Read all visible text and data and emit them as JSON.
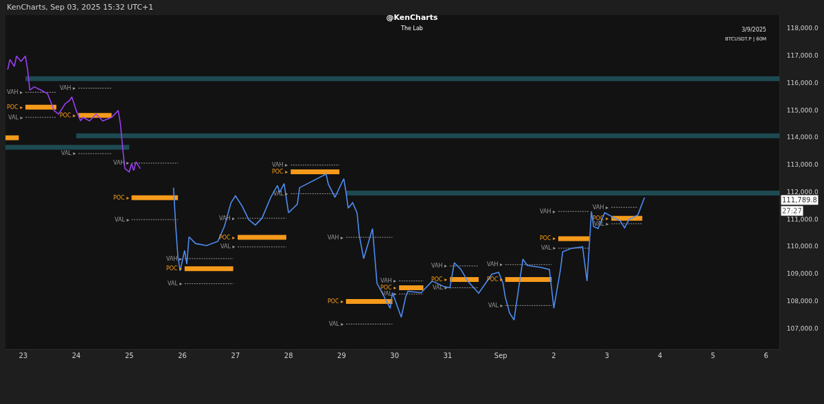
{
  "chart_data": {
    "type": "line",
    "title": "@KenCharts",
    "subtitle": "The Lab",
    "x": [
      "2025-08-22T17:00",
      "2025-08-22T18:00",
      "2025-08-22T20:00",
      "2025-08-22T21:00",
      "2025-08-22T23:00",
      "2025-08-23T01:00",
      "2025-08-23T02:00",
      "2025-08-23T03:00",
      "2025-08-23T05:00",
      "2025-08-23T08:00",
      "2025-08-23T11:00",
      "2025-08-23T14:00",
      "2025-08-23T16:00",
      "2025-08-23T19:00",
      "2025-08-23T21:00",
      "2025-08-23T22:00",
      "2025-08-24T00:00",
      "2025-08-24T02:00",
      "2025-08-24T03:00",
      "2025-08-24T06:00",
      "2025-08-24T09:00",
      "2025-08-24T12:00",
      "2025-08-24T16:00",
      "2025-08-24T19:00",
      "2025-08-24T20:00",
      "2025-08-24T21:00",
      "2025-08-24T22:00",
      "2025-08-25T00:00",
      "2025-08-25T01:00",
      "2025-08-25T02:00",
      "2025-08-25T03:00",
      "2025-08-25T05:00"
    ],
    "series": [
      {
        "color": "#9b3ff5",
        "values": [
          116480,
          116850,
          116600,
          116980,
          116780,
          116980,
          116480,
          115730,
          115850,
          115730,
          115600,
          114980,
          114850,
          115230,
          115350,
          115480,
          114980,
          114600,
          114730,
          114600,
          114850,
          114600,
          114730,
          114980,
          114480,
          113600,
          112850,
          112730,
          113030,
          112780,
          113100,
          112850
        ]
      },
      {
        "color": "#4f8df2",
        "x": [
          "2025-08-25T20:00",
          "2025-08-25T21:00",
          "2025-08-25T22:00",
          "2025-08-25T23:00",
          "2025-08-26T01:00",
          "2025-08-26T02:00",
          "2025-08-26T03:00",
          "2025-08-26T06:00",
          "2025-08-26T11:00",
          "2025-08-26T16:00",
          "2025-08-26T19:00",
          "2025-08-26T22:00",
          "2025-08-27T00:00",
          "2025-08-27T03:00",
          "2025-08-27T06:00",
          "2025-08-27T09:00",
          "2025-08-27T12:00",
          "2025-08-27T16:00",
          "2025-08-27T19:00",
          "2025-08-27T20:00",
          "2025-08-27T22:00",
          "2025-08-28T00:00",
          "2025-08-28T04:00",
          "2025-08-28T05:00",
          "2025-08-28T17:00",
          "2025-08-28T18:00",
          "2025-08-28T21:00",
          "2025-08-29T01:00",
          "2025-08-29T02:00",
          "2025-08-29T03:00",
          "2025-08-29T05:00",
          "2025-08-29T07:00",
          "2025-08-29T08:00",
          "2025-08-29T10:00",
          "2025-08-29T14:00",
          "2025-08-29T16:00",
          "2025-08-29T22:00",
          "2025-08-29T23:00",
          "2025-08-30T03:00",
          "2025-08-30T05:00",
          "2025-08-30T06:00",
          "2025-08-30T12:00",
          "2025-08-30T17:00",
          "2025-08-30T22:00",
          "2025-08-31T01:00",
          "2025-08-31T03:00",
          "2025-08-31T06:00",
          "2025-08-31T09:00",
          "2025-08-31T14:00",
          "2025-08-31T20:00",
          "2025-08-31T23:00",
          "2025-09-01T01:00",
          "2025-09-01T02:00",
          "2025-09-01T04:00",
          "2025-09-01T06:00",
          "2025-09-01T10:00",
          "2025-09-01T12:00",
          "2025-09-01T18:00",
          "2025-09-01T22:00",
          "2025-09-02T00:00",
          "2025-09-02T03:00",
          "2025-09-02T04:00",
          "2025-09-02T08:00",
          "2025-09-02T13:00",
          "2025-09-02T15:00",
          "2025-09-02T16:00",
          "2025-09-02T17:00",
          "2025-09-02T18:00",
          "2025-09-02T20:00",
          "2025-09-02T23:00",
          "2025-09-03T02:00",
          "2025-09-03T06:00",
          "2025-09-03T08:00",
          "2025-09-03T10:00",
          "2025-09-03T14:00",
          "2025-09-03T17:00"
        ],
        "values": [
          112150,
          110730,
          109600,
          109100,
          109850,
          109350,
          110350,
          110100,
          110030,
          110180,
          110730,
          111600,
          111850,
          111480,
          110980,
          110780,
          111030,
          111800,
          112230,
          111980,
          112300,
          111230,
          111550,
          112150,
          112650,
          112280,
          111800,
          112480,
          111980,
          111400,
          111600,
          111230,
          110400,
          109550,
          110650,
          108650,
          107730,
          108300,
          107400,
          108150,
          108350,
          108300,
          108730,
          108530,
          108480,
          109400,
          109150,
          108730,
          108280,
          108980,
          109050,
          108650,
          108150,
          107550,
          107300,
          109530,
          109300,
          109230,
          109150,
          107730,
          109150,
          109800,
          109930,
          109980,
          108730,
          109980,
          111280,
          110730,
          110650,
          111230,
          111100,
          110930,
          110680,
          110980,
          111150,
          111790
        ]
      },
      {
        "color": "#1e4a52",
        "x": [
          "2025-08-23T01:00",
          "2025-09-06T06:00"
        ],
        "values": [
          116150,
          116150
        ]
      },
      {
        "color": "#1e4a52",
        "x": [
          "2025-08-24T00:00",
          "2025-09-06T06:00"
        ],
        "values": [
          114050,
          114050
        ]
      },
      {
        "color": "#1e4a52",
        "x": [
          "2025-08-22T16:00",
          "2025-08-25T00:00"
        ],
        "values": [
          113630,
          113630
        ]
      },
      {
        "color": "#1e4a52",
        "x": [
          "2025-08-29T02:00",
          "2025-09-06T06:00"
        ],
        "values": [
          111950,
          111950
        ]
      },
      {
        "name": "VAH ▸",
        "color": "#9a9a9a",
        "line_style": "dotted",
        "x": [
          "2025-08-23T01:00",
          "2025-08-23T15:00"
        ],
        "values": [
          115650,
          115650
        ]
      },
      {
        "name": "POC ▸",
        "color": "#f59a1b",
        "x": [
          "2025-08-23T01:00",
          "2025-08-23T15:00"
        ],
        "values": [
          115100,
          115100
        ]
      },
      {
        "name": "VAL ▸",
        "color": "#9a9a9a",
        "line_style": "dotted",
        "x": [
          "2025-08-23T01:00",
          "2025-08-23T15:00"
        ],
        "values": [
          114730,
          114730
        ]
      },
      {
        "name": "VAH ▸",
        "color": "#9a9a9a",
        "line_style": "dotted",
        "x": [
          "2025-08-24T01:00",
          "2025-08-24T16:00"
        ],
        "values": [
          115800,
          115800
        ]
      },
      {
        "name": "POC ▸",
        "color": "#f59a1b",
        "x": [
          "2025-08-24T01:00",
          "2025-08-24T16:00"
        ],
        "values": [
          114800,
          114800
        ]
      },
      {
        "name": "VAL ▸",
        "color": "#9a9a9a",
        "line_style": "dotted",
        "x": [
          "2025-08-24T01:00",
          "2025-08-24T16:00"
        ],
        "values": [
          113400,
          113400
        ]
      },
      {
        "color": "#f59a1b",
        "x": [
          "2025-08-22T16:00",
          "2025-08-22T22:00"
        ],
        "values": [
          113980,
          113980
        ]
      },
      {
        "name": "VAH ▸",
        "color": "#9a9a9a",
        "line_style": "dotted",
        "x": [
          "2025-08-25T01:00",
          "2025-08-25T22:00"
        ],
        "values": [
          113050,
          113050
        ]
      },
      {
        "name": "POC ▸",
        "color": "#f59a1b",
        "x": [
          "2025-08-25T01:00",
          "2025-08-25T22:00"
        ],
        "values": [
          111780,
          111780
        ]
      },
      {
        "name": "VAL ▸",
        "color": "#9a9a9a",
        "line_style": "dotted",
        "x": [
          "2025-08-25T01:00",
          "2025-08-25T22:00"
        ],
        "values": [
          110980,
          110980
        ]
      },
      {
        "name": "VAH ▸",
        "color": "#9a9a9a",
        "line_style": "dotted",
        "x": [
          "2025-08-26T01:00",
          "2025-08-26T23:00"
        ],
        "values": [
          109550,
          109550
        ]
      },
      {
        "name": "POC ▸",
        "color": "#f59a1b",
        "x": [
          "2025-08-26T01:00",
          "2025-08-26T23:00"
        ],
        "values": [
          109180,
          109180
        ]
      },
      {
        "name": "VAL ▸",
        "color": "#9a9a9a",
        "line_style": "dotted",
        "x": [
          "2025-08-26T01:00",
          "2025-08-26T23:00"
        ],
        "values": [
          108630,
          108630
        ]
      },
      {
        "name": "VAH ▸",
        "color": "#9a9a9a",
        "line_style": "dotted",
        "x": [
          "2025-08-27T01:00",
          "2025-08-27T23:00"
        ],
        "values": [
          111030,
          111030
        ]
      },
      {
        "name": "POC ▸",
        "color": "#f59a1b",
        "x": [
          "2025-08-27T01:00",
          "2025-08-27T23:00"
        ],
        "values": [
          110330,
          110330
        ]
      },
      {
        "name": "VAL ▸",
        "color": "#9a9a9a",
        "line_style": "dotted",
        "x": [
          "2025-08-27T01:00",
          "2025-08-27T23:00"
        ],
        "values": [
          109980,
          109980
        ]
      },
      {
        "name": "VAH ▸",
        "color": "#9a9a9a",
        "line_style": "dotted",
        "x": [
          "2025-08-28T01:00",
          "2025-08-28T23:00"
        ],
        "values": [
          112980,
          112980
        ]
      },
      {
        "name": "POC ▸",
        "color": "#f59a1b",
        "x": [
          "2025-08-28T01:00",
          "2025-08-28T23:00"
        ],
        "values": [
          112730,
          112730
        ]
      },
      {
        "name": "VAL ▸",
        "color": "#9a9a9a",
        "line_style": "dotted",
        "x": [
          "2025-08-28T01:00",
          "2025-08-28T23:00"
        ],
        "values": [
          111930,
          111930
        ]
      },
      {
        "name": "VAH ▸",
        "color": "#9a9a9a",
        "line_style": "dotted",
        "x": [
          "2025-08-29T02:00",
          "2025-08-29T23:00"
        ],
        "values": [
          110330,
          110330
        ]
      },
      {
        "name": "POC ▸",
        "color": "#f59a1b",
        "x": [
          "2025-08-29T02:00",
          "2025-08-29T23:00"
        ],
        "values": [
          107980,
          107980
        ]
      },
      {
        "name": "VAL ▸",
        "color": "#9a9a9a",
        "line_style": "dotted",
        "x": [
          "2025-08-29T02:00",
          "2025-08-29T23:00"
        ],
        "values": [
          107150,
          107150
        ]
      },
      {
        "name": "VAH ▸",
        "color": "#9a9a9a",
        "line_style": "dotted",
        "x": [
          "2025-08-30T02:00",
          "2025-08-30T13:00"
        ],
        "values": [
          108730,
          108730
        ]
      },
      {
        "name": "POC ▸",
        "color": "#f59a1b",
        "x": [
          "2025-08-30T02:00",
          "2025-08-30T13:00"
        ],
        "values": [
          108480,
          108480
        ]
      },
      {
        "name": "VAL ▸",
        "color": "#9a9a9a",
        "line_style": "dotted",
        "x": [
          "2025-08-30T02:00",
          "2025-08-30T13:00"
        ],
        "values": [
          108250,
          108250
        ]
      },
      {
        "name": "VAH ▸",
        "color": "#9a9a9a",
        "line_style": "dotted",
        "x": [
          "2025-08-31T01:00",
          "2025-08-31T14:00"
        ],
        "values": [
          109280,
          109280
        ]
      },
      {
        "name": "POC ▸",
        "color": "#f59a1b",
        "x": [
          "2025-08-31T01:00",
          "2025-08-31T14:00"
        ],
        "values": [
          108780,
          108780
        ]
      },
      {
        "name": "VAL ▸",
        "color": "#9a9a9a",
        "line_style": "dotted",
        "x": [
          "2025-08-31T01:00",
          "2025-08-31T14:00"
        ],
        "values": [
          108480,
          108480
        ]
      },
      {
        "name": "VAH ▸",
        "color": "#9a9a9a",
        "line_style": "dotted",
        "x": [
          "2025-09-01T02:00",
          "2025-09-01T23:00"
        ],
        "values": [
          109330,
          109330
        ]
      },
      {
        "name": "POC ▸",
        "color": "#f59a1b",
        "x": [
          "2025-09-01T02:00",
          "2025-09-01T23:00"
        ],
        "values": [
          108780,
          108780
        ]
      },
      {
        "name": "VAL ▸",
        "color": "#9a9a9a",
        "line_style": "dotted",
        "x": [
          "2025-09-01T02:00",
          "2025-09-01T23:00"
        ],
        "values": [
          107830,
          107830
        ]
      },
      {
        "name": "VAH ▸",
        "color": "#9a9a9a",
        "line_style": "dotted",
        "x": [
          "2025-09-02T02:00",
          "2025-09-02T16:00"
        ],
        "values": [
          111280,
          111280
        ]
      },
      {
        "name": "POC ▸",
        "color": "#f59a1b",
        "x": [
          "2025-09-02T02:00",
          "2025-09-02T16:00"
        ],
        "values": [
          110280,
          110280
        ]
      },
      {
        "name": "VAL ▸",
        "color": "#9a9a9a",
        "line_style": "dotted",
        "x": [
          "2025-09-02T02:00",
          "2025-09-02T16:00"
        ],
        "values": [
          109930,
          109930
        ]
      },
      {
        "name": "VAH ▸",
        "color": "#9a9a9a",
        "line_style": "dotted",
        "x": [
          "2025-09-03T02:00",
          "2025-09-03T14:00"
        ],
        "values": [
          111430,
          111430
        ]
      },
      {
        "name": "POC ▸",
        "color": "#f59a1b",
        "x": [
          "2025-09-03T02:00",
          "2025-09-03T16:00"
        ],
        "values": [
          111030,
          111030
        ]
      },
      {
        "name": "VAL ▸",
        "color": "#9a9a9a",
        "line_style": "dotted",
        "x": [
          "2025-09-03T02:00",
          "2025-09-03T16:00"
        ],
        "values": [
          110830,
          110830
        ]
      }
    ],
    "annotations": [
      "KenCharts, Sep 03, 2025 15:32 UTC+1",
      "3/9/2025",
      "BTCUSDT.P | 60M",
      "111,789.8",
      "27:27"
    ],
    "xlim": [
      "2025-08-22T16:00",
      "2025-09-06T06:00"
    ],
    "xticks": [
      {
        "value": "2025-08-23",
        "label": "23"
      },
      {
        "value": "2025-08-24",
        "label": "24"
      },
      {
        "value": "2025-08-25",
        "label": "25"
      },
      {
        "value": "2025-08-26",
        "label": "26"
      },
      {
        "value": "2025-08-27",
        "label": "27"
      },
      {
        "value": "2025-08-28",
        "label": "28"
      },
      {
        "value": "2025-08-29",
        "label": "29"
      },
      {
        "value": "2025-08-30",
        "label": "30"
      },
      {
        "value": "2025-08-31",
        "label": "31"
      },
      {
        "value": "2025-09-01",
        "label": "Sep"
      },
      {
        "value": "2025-09-02",
        "label": "2"
      },
      {
        "value": "2025-09-03",
        "label": "3"
      },
      {
        "value": "2025-09-04",
        "label": "4"
      },
      {
        "value": "2025-09-05",
        "label": "5"
      },
      {
        "value": "2025-09-06",
        "label": "6"
      }
    ],
    "ylim": [
      106230,
      118480
    ],
    "yticks": [
      {
        "value": 107000,
        "label": "107,000.0"
      },
      {
        "value": 108000,
        "label": "108,000.0"
      },
      {
        "value": 109000,
        "label": "109,000.0"
      },
      {
        "value": 110000,
        "label": "110,000.0"
      },
      {
        "value": 111000,
        "label": "111,000.0"
      },
      {
        "value": 112000,
        "label": "112,000.0"
      },
      {
        "value": 113000,
        "label": "113,000.0"
      },
      {
        "value": 114000,
        "label": "114,000.0"
      },
      {
        "value": 115000,
        "label": "115,000.0"
      },
      {
        "value": 116000,
        "label": "116,000.0"
      },
      {
        "value": 117000,
        "label": "117,000.0"
      },
      {
        "value": 118000,
        "label": "118,000.0"
      }
    ],
    "grid": false,
    "legend": false
  }
}
